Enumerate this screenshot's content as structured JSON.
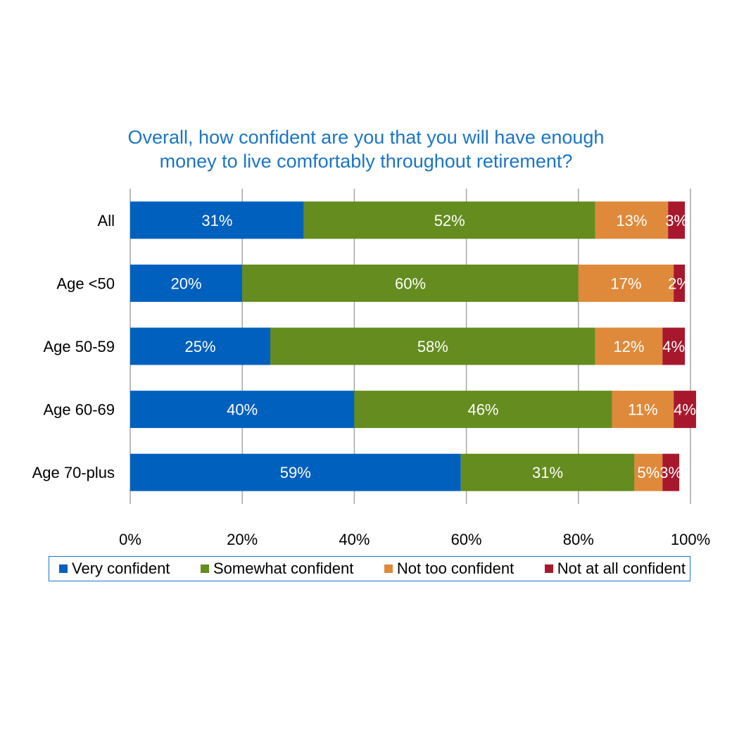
{
  "chart_data": {
    "type": "bar",
    "orientation": "horizontal",
    "stacked": true,
    "title_lines": [
      "Overall, how confident are you that you will have enough",
      "money to live comfortably throughout retirement?"
    ],
    "categories": [
      "All",
      "Age <50",
      "Age 50-59",
      "Age 60-69",
      "Age 70-plus"
    ],
    "series": [
      {
        "name": "Very confident",
        "values": [
          31,
          20,
          25,
          40,
          59
        ],
        "color": "#0060be"
      },
      {
        "name": "Somewhat confident",
        "values": [
          52,
          60,
          58,
          46,
          31
        ],
        "color": "#648c1e"
      },
      {
        "name": "Not too confident",
        "values": [
          13,
          17,
          12,
          11,
          5
        ],
        "color": "#df8a3a"
      },
      {
        "name": "Not at all confident",
        "values": [
          3,
          2,
          4,
          4,
          3
        ],
        "color": "#a8182d"
      }
    ],
    "value_suffix": "%",
    "xlim": [
      0,
      100
    ],
    "x_ticks": [
      "0%",
      "20%",
      "40%",
      "60%",
      "80%",
      "100%"
    ],
    "grid": true,
    "legend_position": "bottom"
  }
}
